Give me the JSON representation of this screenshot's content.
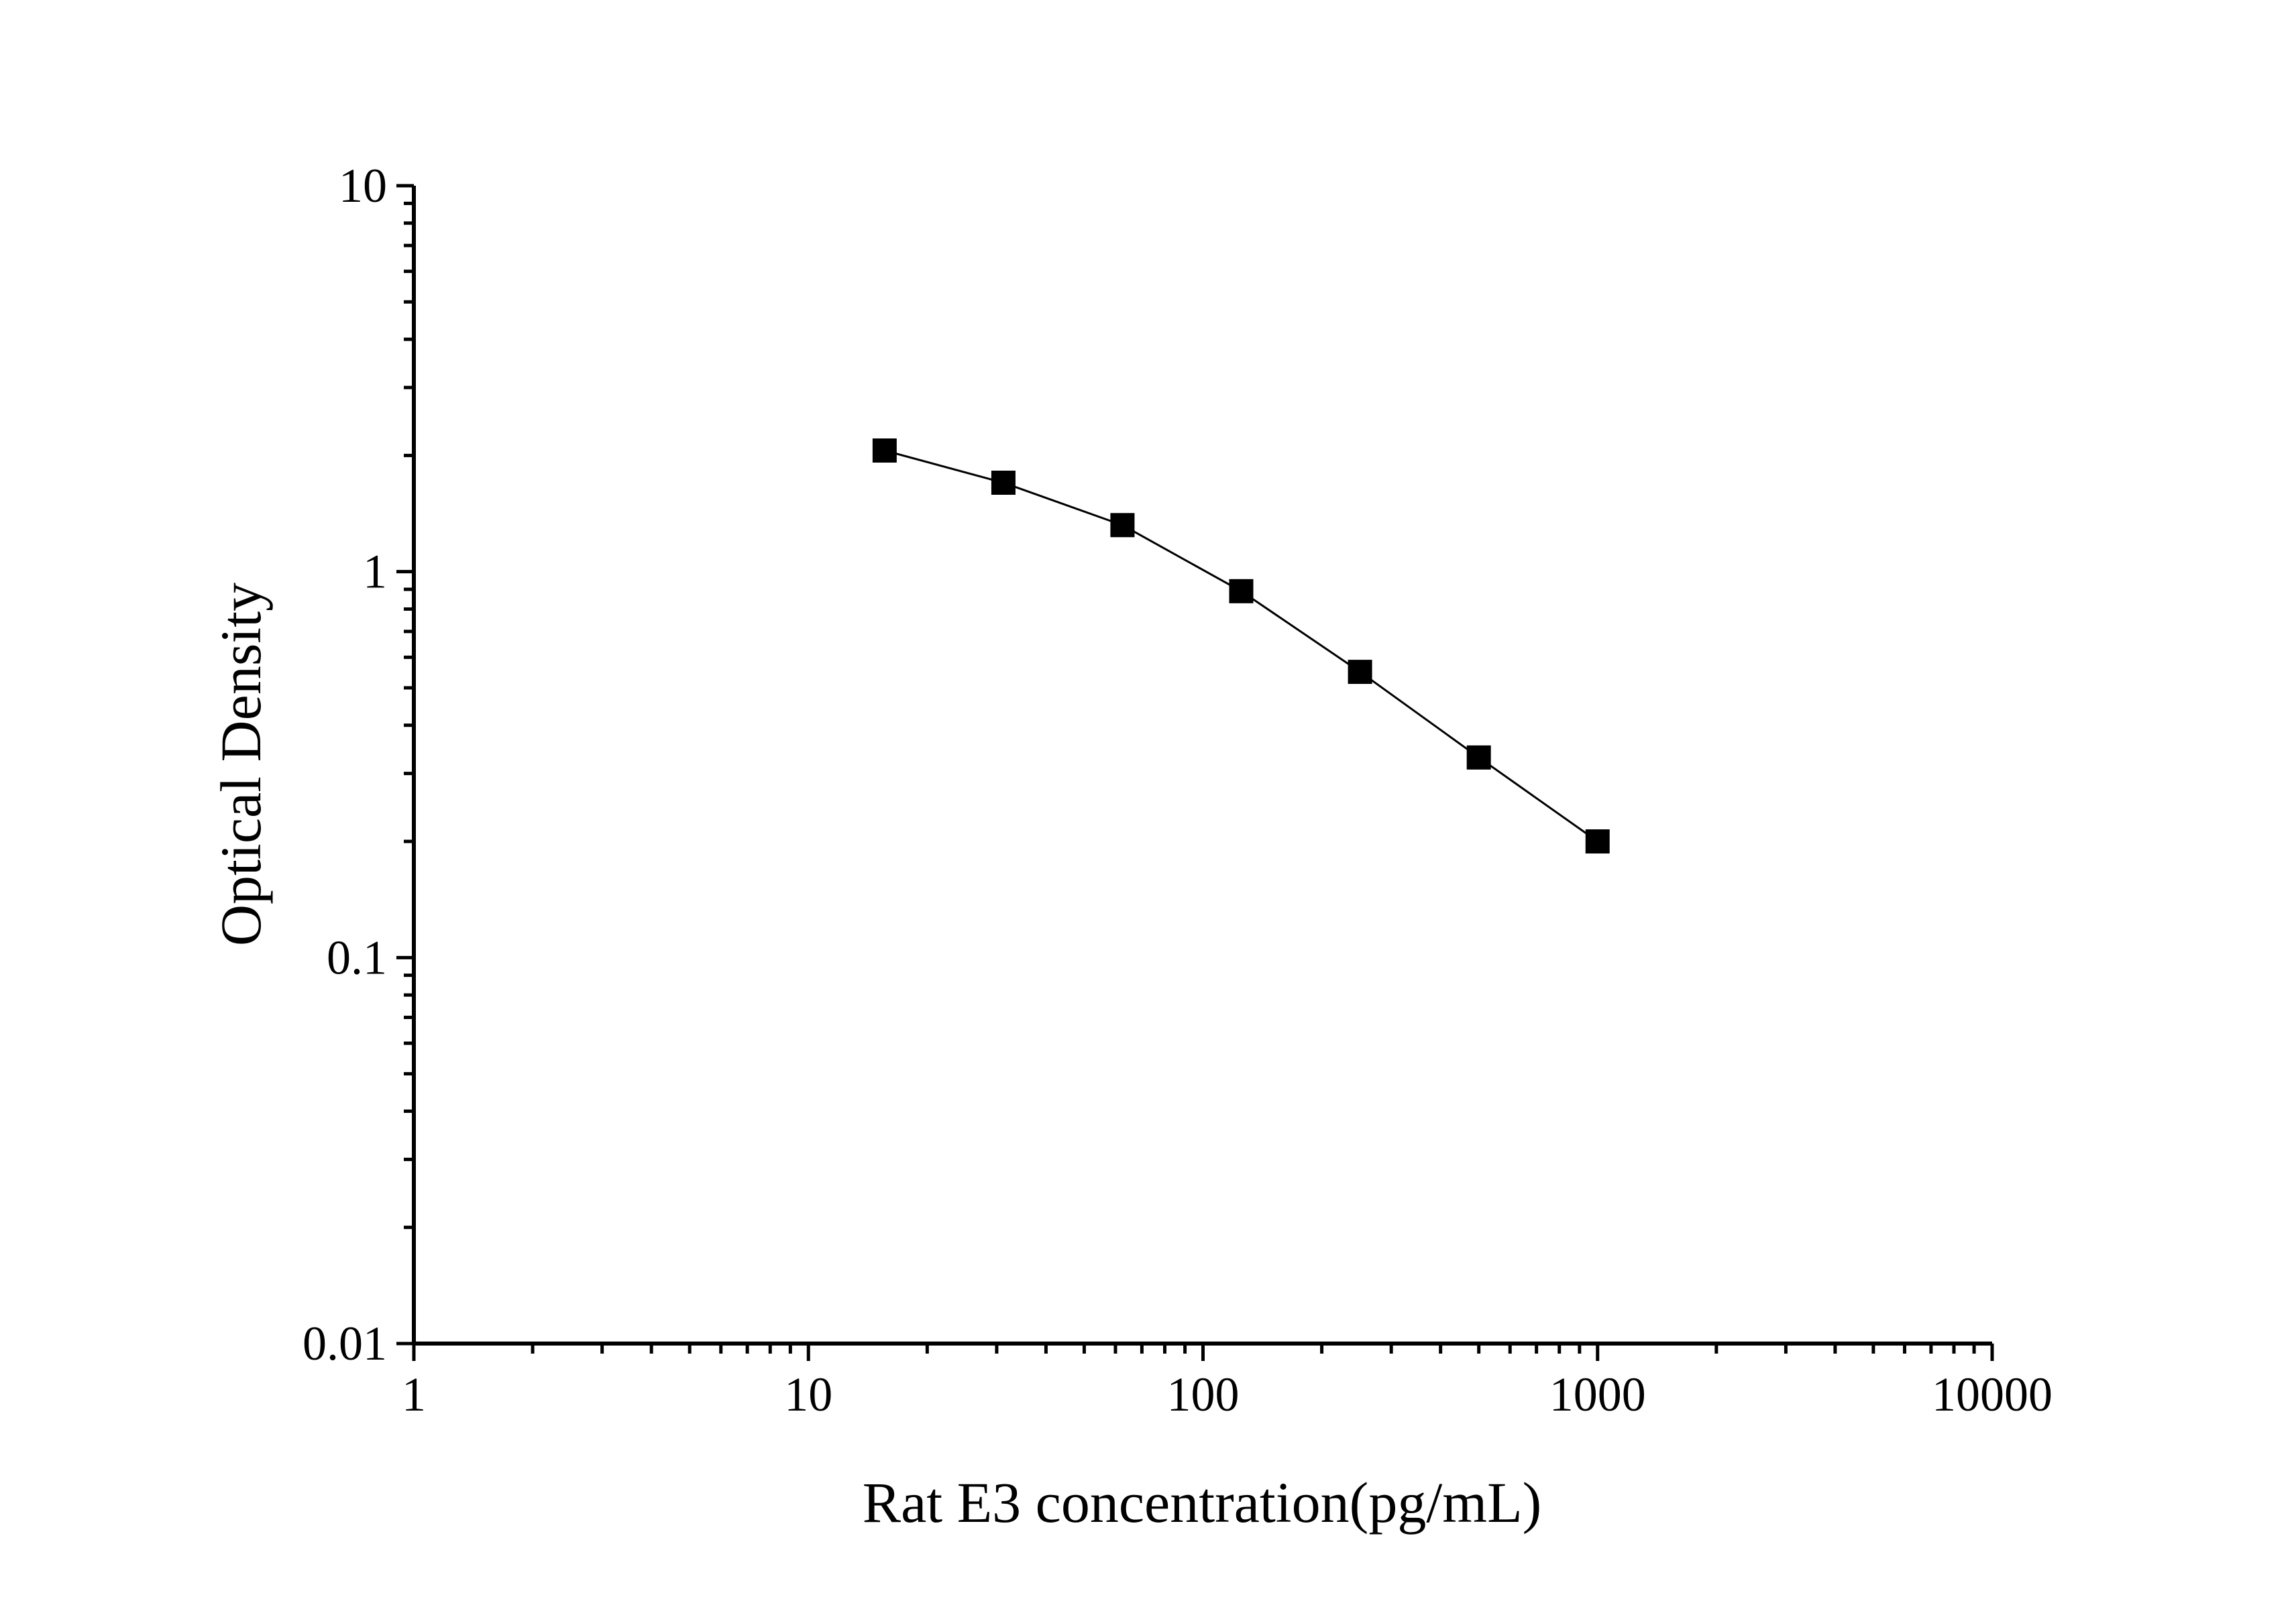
{
  "chart_data": {
    "type": "line",
    "xlabel": "Rat E3 concentration(pg/mL)",
    "ylabel": "Optical Density",
    "xscale": "log",
    "yscale": "log",
    "xlim": [
      1,
      10000
    ],
    "ylim": [
      0.01,
      10
    ],
    "x_tick_labels": [
      "1",
      "10",
      "100",
      "1000",
      "10000"
    ],
    "y_tick_labels": [
      "0.01",
      "0.1",
      "1",
      "10"
    ],
    "grid": false,
    "legend": "none",
    "marker": "square",
    "series": [
      {
        "x": [
          15.6,
          31.2,
          62.5,
          125,
          250,
          500,
          1000
        ],
        "y": [
          2.06,
          1.7,
          1.32,
          0.89,
          0.55,
          0.33,
          0.2
        ]
      }
    ]
  }
}
